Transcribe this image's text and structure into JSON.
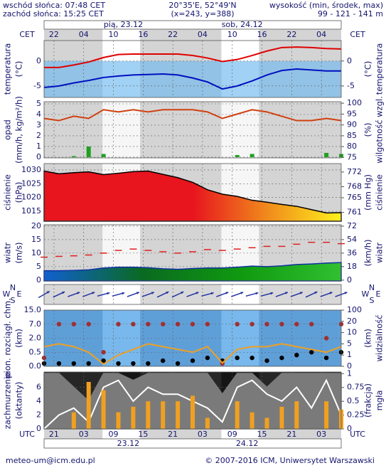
{
  "header": {
    "sunrise": "wschód słońca: 07:48 CET",
    "sunset": "zachód słońca: 15:25 CET",
    "coords": "20°35'E, 52°49'N",
    "grid_point": "(x=243, y=388)",
    "elevation_title": "wysokość (min, środek, max)",
    "elevation": "99 - 121 - 141 m"
  },
  "footer": {
    "email": "meteo-um@icm.edu.pl",
    "copyright": "© 2007-2016 ICM, Uniwersytet Warszawski"
  },
  "time": {
    "xlim": [
      0,
      60
    ],
    "x": [
      0,
      3,
      6,
      9,
      12,
      15,
      18,
      21,
      24,
      27,
      30,
      33,
      36,
      39,
      42,
      45,
      48,
      51,
      54,
      57,
      60
    ],
    "top_label": "CET",
    "top_ticks": [
      {
        "value": 2,
        "label": "22"
      },
      {
        "value": 8,
        "label": "04"
      },
      {
        "value": 14,
        "label": "10"
      },
      {
        "value": 20,
        "label": "16"
      },
      {
        "value": 26,
        "label": "22"
      },
      {
        "value": 32,
        "label": "04"
      },
      {
        "value": 38,
        "label": "10"
      },
      {
        "value": 44,
        "label": "16"
      },
      {
        "value": 50,
        "label": "22"
      },
      {
        "value": 56,
        "label": "04"
      }
    ],
    "top_dates": [
      {
        "value": 16,
        "label": "pią, 23.12"
      },
      {
        "value": 40,
        "label": "sob, 24.12"
      }
    ],
    "bottom_label": "UTC",
    "bottom_ticks": [
      {
        "value": 2,
        "label": "21"
      },
      {
        "value": 8,
        "label": "03"
      },
      {
        "value": 14,
        "label": "09"
      },
      {
        "value": 20,
        "label": "15"
      },
      {
        "value": 26,
        "label": "21"
      },
      {
        "value": 32,
        "label": "03"
      },
      {
        "value": 38,
        "label": "09"
      },
      {
        "value": 44,
        "label": "15"
      },
      {
        "value": 50,
        "label": "21"
      },
      {
        "value": 56,
        "label": "03"
      }
    ],
    "bottom_dates": [
      {
        "value": 17,
        "label": "23.12"
      },
      {
        "value": 41,
        "label": "24.12"
      }
    ]
  },
  "chart_data": [
    {
      "type": "line",
      "y_label": "temperatura",
      "y_unit": "(°C)",
      "y2_label": "temperatura",
      "y2_unit": "(°C)",
      "ylim": [
        -7.3,
        4.1
      ],
      "yticks": [
        -5,
        0
      ],
      "y2lim": [
        -7.3,
        4.1
      ],
      "y2ticks": [
        -5,
        0
      ],
      "series": [
        {
          "color": "#e00000",
          "values": [
            -1.3,
            -1.3,
            -0.8,
            -0.2,
            0.7,
            1.3,
            1.4,
            1.4,
            1.4,
            1.4,
            1.1,
            0.6,
            -0.1,
            0.3,
            1.1,
            2.0,
            2.7,
            2.8,
            2.7,
            2.5,
            2.4
          ]
        },
        {
          "color": "#0010c0",
          "values": [
            -5.3,
            -5.0,
            -4.4,
            -3.9,
            -3.3,
            -3.0,
            -2.8,
            -2.7,
            -2.6,
            -2.8,
            -3.4,
            -4.2,
            -5.6,
            -5.0,
            -4.0,
            -2.8,
            -1.9,
            -1.6,
            -1.8,
            -2.0,
            -2.0
          ]
        }
      ]
    },
    {
      "type": "bar",
      "y_label": "opad",
      "y_unit": "(mm/h, kg/m²/h)",
      "y2_label": "wilgotność wzgl.",
      "y2_unit": "(%)",
      "ylim": [
        -0.07,
        5.2
      ],
      "yticks": [
        0,
        1,
        2,
        3,
        4,
        5
      ],
      "y2lim": [
        74.8,
        100.7
      ],
      "y2ticks": [
        75,
        80,
        85,
        90,
        95,
        100
      ],
      "series": [
        {
          "color": "#20a020",
          "values": [
            0,
            0,
            0.1,
            1.0,
            0.3,
            0,
            0,
            0,
            0,
            0,
            0,
            0,
            0,
            0.2,
            0.3,
            0,
            0,
            0,
            0,
            0.4,
            0.3
          ]
        },
        {
          "color": "#d04010",
          "mark": "line",
          "axis": "y2",
          "values": [
            93,
            92,
            94,
            93,
            97,
            96,
            97,
            96,
            97,
            97,
            97,
            96,
            93,
            95,
            97,
            96,
            94,
            92,
            92,
            93,
            92
          ]
        }
      ]
    },
    {
      "type": "area",
      "y_label": "ciśnienie",
      "y_unit": "(hPa)",
      "y2_label": "ciśnienie",
      "y2_unit": "(mm Hg)",
      "ylim": [
        1011.4,
        1032.3
      ],
      "yticks": [
        1015,
        1020,
        1025,
        1030
      ],
      "y2lim": [
        758.6,
        774.3
      ],
      "y2ticks": [
        761,
        765,
        768,
        772
      ],
      "series": [
        {
          "color": "#000000",
          "fill_colors": [
            "#e8141e",
            "#e8141e",
            "#e8141e",
            "#f08a1c",
            "#fff01c"
          ],
          "values": [
            1029.6,
            1028.6,
            1029.0,
            1029.3,
            1028.3,
            1028.8,
            1029.4,
            1029.6,
            1028.4,
            1027.2,
            1025.5,
            1022.8,
            1021.2,
            1020.4,
            1019.0,
            1018.3,
            1017.5,
            1016.8,
            1015.6,
            1014.4,
            1014.5
          ]
        }
      ]
    },
    {
      "type": "area",
      "y_label": "wiatr",
      "y_unit": "(m/s)",
      "y2_label": "wiatr",
      "y2_unit": "(km/h)",
      "ylim": [
        -0.3,
        20.5
      ],
      "yticks": [
        0,
        5,
        10,
        15,
        20
      ],
      "y2lim": [
        -1.08,
        73.8
      ],
      "y2ticks": [
        0,
        18,
        36,
        54,
        72
      ],
      "series": [
        {
          "color": "#1030a0",
          "fill_colors": [
            "#1060d0",
            "#0a6a20",
            "#109a10",
            "#30c030"
          ],
          "values": [
            3.5,
            3.5,
            3.6,
            3.8,
            4.5,
            4.8,
            4.8,
            4.6,
            4.2,
            4.0,
            4.3,
            4.5,
            4.5,
            4.8,
            5.2,
            5.0,
            5.3,
            5.8,
            6.0,
            6.3,
            6.5
          ]
        },
        {
          "color": "#e02020",
          "mark": "dash",
          "values": [
            8.5,
            8.8,
            9.0,
            9.3,
            10,
            11,
            11.5,
            11,
            10.5,
            10,
            10.5,
            11.3,
            11,
            11.5,
            12,
            12.5,
            12.5,
            13.3,
            14,
            14,
            13.5
          ]
        }
      ]
    },
    {
      "type": "arrows",
      "compass": [
        "N",
        "W",
        "E",
        "S"
      ],
      "color": "#2030a0",
      "values": [
        240,
        245,
        250,
        250,
        255,
        255,
        250,
        250,
        245,
        245,
        250,
        255,
        250,
        250,
        255,
        255,
        250,
        250,
        245,
        250,
        250
      ]
    },
    {
      "type": "scatter",
      "y_label": "pion. rozciągł. chm.",
      "y_unit": "(km)",
      "y2_label": "widzialność",
      "y2_unit": "(km)",
      "yscale": "piecewise",
      "yticks": [
        {
          "value": 0,
          "label": "0.0"
        },
        {
          "value": 0.5,
          "label": "0.5"
        },
        {
          "value": 2,
          "label": "2.0"
        },
        {
          "value": 7,
          "label": "7.0"
        },
        {
          "value": 15,
          "label": "15.0"
        }
      ],
      "y2ticks": [
        0,
        1,
        5,
        10,
        20,
        100
      ],
      "series": [
        {
          "color": "#a03030",
          "values": [
            0.3,
            7,
            7,
            7,
            0.5,
            7,
            7,
            7,
            7,
            7,
            7,
            7,
            0.1,
            7,
            7,
            7,
            7,
            7,
            7,
            2,
            7
          ]
        },
        {
          "color": "#000000",
          "values": [
            0.1,
            0.1,
            0.1,
            0.1,
            0.2,
            0.1,
            0.1,
            0.1,
            0.2,
            0.1,
            0.2,
            0.3,
            0.2,
            0.3,
            0.3,
            0.2,
            0.3,
            0.4,
            0.5,
            0.3,
            0.5
          ]
        },
        {
          "color": "#f0a020",
          "mark": "line",
          "axis": "y2",
          "values": [
            4,
            5,
            4,
            2,
            0.2,
            1,
            3,
            5,
            4,
            3,
            2,
            4,
            0.3,
            3,
            4,
            4,
            5,
            4,
            3,
            2,
            4
          ]
        }
      ]
    },
    {
      "type": "area",
      "y_label": "zachmurzenie",
      "y_unit": "(oktanty)",
      "y2_label": "mgła",
      "y2_unit": "(frakcja)",
      "ylim": [
        0,
        8.2
      ],
      "yticks": [
        0,
        2,
        4,
        6
      ],
      "y2lim": [
        0,
        1.03
      ],
      "y2ticks": [
        0,
        0.25,
        0.5,
        0.75,
        1
      ],
      "series": [
        {
          "color": "#7a7a7a",
          "values": [
            8,
            8,
            6,
            4,
            8,
            8,
            7,
            8,
            8,
            8,
            8,
            8,
            5,
            8,
            8,
            6,
            8,
            8,
            8,
            8,
            8
          ]
        },
        {
          "color": "#ffffff",
          "mark": "line",
          "values": [
            0,
            2,
            3,
            1,
            6,
            7,
            4,
            6,
            5,
            5,
            4,
            3,
            1,
            6,
            7,
            5,
            4,
            6,
            3,
            7,
            2
          ]
        },
        {
          "color": "#f0a020",
          "mark": "bar",
          "axis": "y2",
          "values": [
            0,
            0,
            0.3,
            0.85,
            0.7,
            0.3,
            0.4,
            0.5,
            0.5,
            0.5,
            0.6,
            0.2,
            0,
            0.5,
            0.3,
            0.2,
            0.4,
            0.5,
            0,
            0.5,
            0.35
          ]
        }
      ]
    }
  ]
}
